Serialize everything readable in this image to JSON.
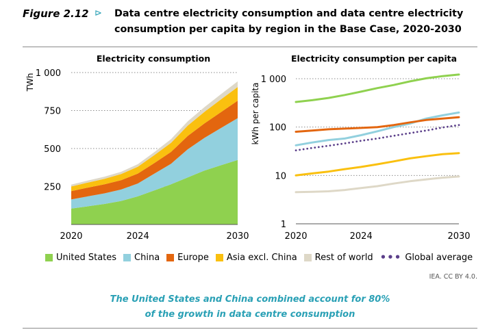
{
  "figure": {
    "label": "Figure 2.12",
    "arrow": "⊳",
    "title": "Data centre electricity consumption and data centre electricity consumption per capita by region in the Base Case, 2020-2030"
  },
  "colors": {
    "united_states": "#8fd14f",
    "china": "#92d0de",
    "europe": "#e3660f",
    "asia_excl_china": "#fac00f",
    "rest_of_world": "#ded8c7",
    "global_average": "#5b3f8a",
    "grid": "#8a8a8a",
    "accent": "#29a0b5"
  },
  "chart_data": [
    {
      "type": "area",
      "title": "Electricity consumption",
      "ylabel": "TWh",
      "stacked": true,
      "x": [
        2020,
        2021,
        2022,
        2023,
        2024,
        2025,
        2026,
        2027,
        2028,
        2029,
        2030
      ],
      "xticks": [
        "2020",
        "2024",
        "2030"
      ],
      "yticks": [
        "250",
        "500",
        "750",
        "1 000"
      ],
      "ylim": [
        0,
        1000
      ],
      "grid": true,
      "series": [
        {
          "name": "United States",
          "color_key": "united_states",
          "values": [
            105,
            120,
            135,
            155,
            185,
            225,
            265,
            310,
            355,
            390,
            425
          ]
        },
        {
          "name": "China",
          "color_key": "china",
          "values": [
            60,
            65,
            70,
            75,
            85,
            110,
            135,
            185,
            215,
            245,
            275
          ]
        },
        {
          "name": "Europe",
          "color_key": "europe",
          "values": [
            55,
            58,
            60,
            62,
            65,
            70,
            78,
            88,
            95,
            105,
            115
          ]
        },
        {
          "name": "Asia excl. China",
          "color_key": "asia_excl_china",
          "values": [
            30,
            33,
            36,
            40,
            45,
            52,
            60,
            68,
            76,
            84,
            90
          ]
        },
        {
          "name": "Rest of world",
          "color_key": "rest_of_world",
          "values": [
            12,
            13,
            14,
            15,
            17,
            20,
            24,
            28,
            31,
            34,
            37
          ]
        }
      ]
    },
    {
      "type": "line",
      "title": "Electricity consumption per capita",
      "ylabel": "kWh per capita",
      "yscale": "log",
      "x": [
        2020,
        2021,
        2022,
        2023,
        2024,
        2025,
        2026,
        2027,
        2028,
        2029,
        2030
      ],
      "xticks": [
        "2020",
        "2024",
        "2030"
      ],
      "yticks": [
        "1",
        "10",
        "100",
        "1 000"
      ],
      "ylim": [
        1,
        1000
      ],
      "grid": true,
      "series": [
        {
          "name": "United States",
          "color_key": "united_states",
          "values": [
            330,
            360,
            400,
            460,
            540,
            640,
            740,
            880,
            1020,
            1130,
            1220
          ]
        },
        {
          "name": "China",
          "color_key": "china",
          "values": [
            42,
            48,
            54,
            58,
            68,
            82,
            100,
            118,
            150,
            175,
            200
          ]
        },
        {
          "name": "Europe",
          "color_key": "europe",
          "values": [
            80,
            85,
            90,
            93,
            96,
            100,
            110,
            125,
            140,
            150,
            160
          ]
        },
        {
          "name": "Asia excl. China",
          "color_key": "asia_excl_china",
          "values": [
            10,
            11,
            12,
            13.5,
            15,
            17,
            19.5,
            22.5,
            25,
            27.5,
            29
          ]
        },
        {
          "name": "Rest of world",
          "color_key": "rest_of_world",
          "values": [
            4.5,
            4.6,
            4.7,
            5.0,
            5.5,
            6.0,
            6.8,
            7.6,
            8.3,
            9.0,
            9.5
          ]
        },
        {
          "name": "Global average",
          "color_key": "global_average",
          "dashed": true,
          "values": [
            33,
            37,
            41,
            46,
            52,
            58,
            66,
            75,
            85,
            98,
            110
          ]
        }
      ]
    }
  ],
  "legend": {
    "items": [
      {
        "label": "United States",
        "color_key": "united_states"
      },
      {
        "label": "China",
        "color_key": "china"
      },
      {
        "label": "Europe",
        "color_key": "europe"
      },
      {
        "label": "Asia excl. China",
        "color_key": "asia_excl_china"
      },
      {
        "label": "Rest of world",
        "color_key": "rest_of_world"
      }
    ],
    "line_item": {
      "label": "Global average",
      "color_key": "global_average"
    }
  },
  "credit": "IEA. CC BY 4.0.",
  "caption": {
    "line1": "The United States and China combined account for 80%",
    "line2": "of the growth in data centre consumption"
  }
}
